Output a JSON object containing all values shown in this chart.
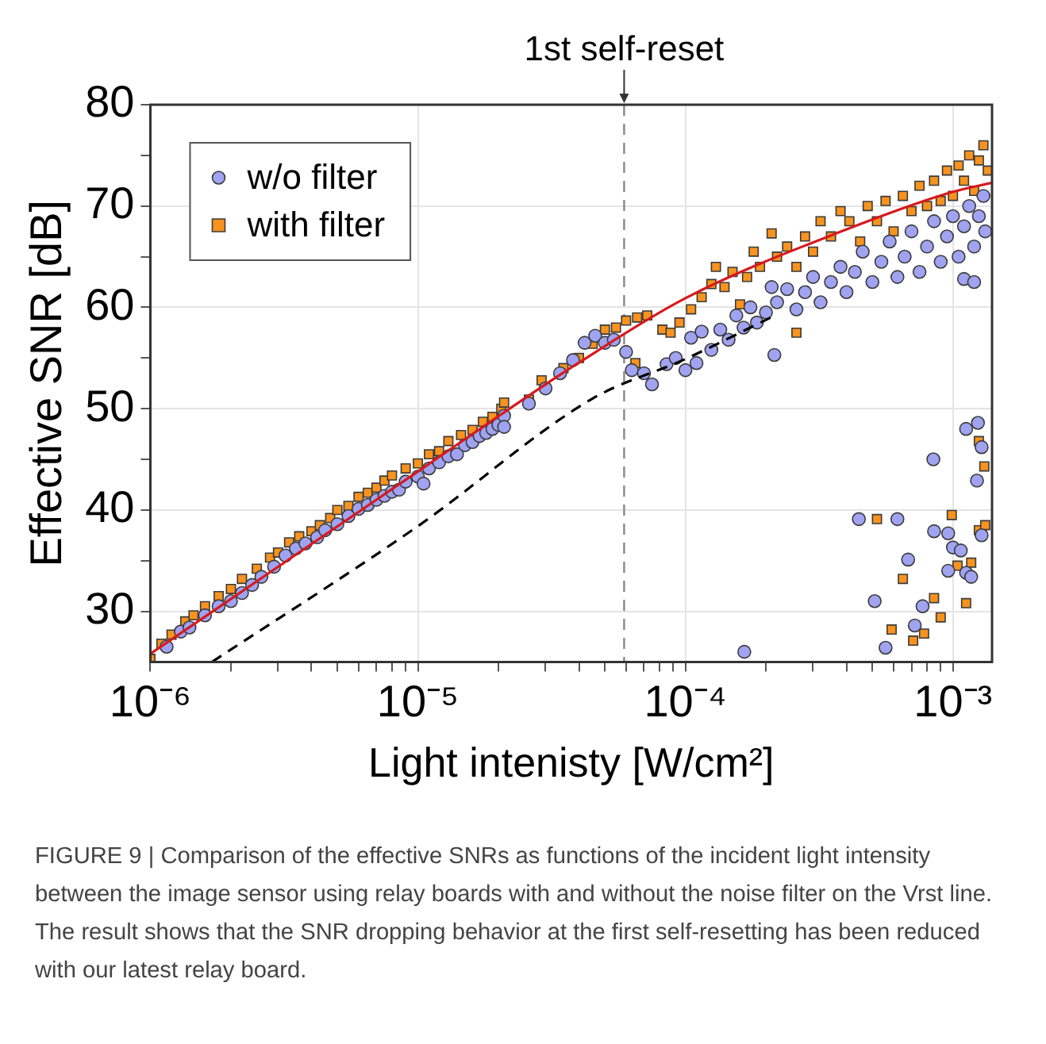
{
  "chart_data": {
    "type": "scatter",
    "xlabel": "Light intenisty [W/cm²]",
    "ylabel": "Effective SNR [dB]",
    "log": "x",
    "xlim": [
      1e-06,
      0.0014
    ],
    "xticks": [
      {
        "value": 1e-06,
        "label": "10⁻⁶"
      },
      {
        "value": 2e-06,
        "label": null
      },
      {
        "value": 3e-06,
        "label": null
      },
      {
        "value": 4e-06,
        "label": null
      },
      {
        "value": 5e-06,
        "label": null
      },
      {
        "value": 6e-06,
        "label": null
      },
      {
        "value": 7e-06,
        "label": null
      },
      {
        "value": 8e-06,
        "label": null
      },
      {
        "value": 9e-06,
        "label": null
      },
      {
        "value": 1e-05,
        "label": "10⁻⁵"
      },
      {
        "value": 2e-05,
        "label": null
      },
      {
        "value": 3e-05,
        "label": null
      },
      {
        "value": 4e-05,
        "label": null
      },
      {
        "value": 5e-05,
        "label": null
      },
      {
        "value": 6e-05,
        "label": null
      },
      {
        "value": 7e-05,
        "label": null
      },
      {
        "value": 8e-05,
        "label": null
      },
      {
        "value": 9e-05,
        "label": null
      },
      {
        "value": 0.0001,
        "label": "10⁻⁴"
      },
      {
        "value": 0.0002,
        "label": null
      },
      {
        "value": 0.0003,
        "label": null
      },
      {
        "value": 0.0004,
        "label": null
      },
      {
        "value": 0.0005,
        "label": null
      },
      {
        "value": 0.0006,
        "label": null
      },
      {
        "value": 0.0007,
        "label": null
      },
      {
        "value": 0.0008,
        "label": null
      },
      {
        "value": 0.0009,
        "label": null
      },
      {
        "value": 0.001,
        "label": "10⁻³"
      }
    ],
    "ylim": [
      25,
      80
    ],
    "yticks": [
      30,
      {
        "value": 35,
        "label": null
      },
      40,
      {
        "value": 45,
        "label": null
      },
      50,
      {
        "value": 55,
        "label": null
      },
      60,
      {
        "value": 65,
        "label": null
      },
      70,
      {
        "value": 75,
        "label": null
      },
      80
    ],
    "grid": true,
    "legend": "top left",
    "series": [
      {
        "name": "w/o filter",
        "marker": "circle",
        "color": "#9fa3f0",
        "x": [
          1.15e-06,
          1.3e-06,
          1.4e-06,
          1.6e-06,
          1.8e-06,
          2e-06,
          2.2e-06,
          2.4e-06,
          2.6e-06,
          2.9e-06,
          3.2e-06,
          3.5e-06,
          3.8e-06,
          4.2e-06,
          4.5e-06,
          5e-06,
          5.5e-06,
          6e-06,
          6.5e-06,
          7e-06,
          7.5e-06,
          8e-06,
          8.5e-06,
          9e-06,
          1e-05,
          1.05e-05,
          1.1e-05,
          1.2e-05,
          1.3e-05,
          1.4e-05,
          1.5e-05,
          1.6e-05,
          1.7e-05,
          1.8e-05,
          1.9e-05,
          2e-05,
          2.1e-05,
          2.1e-05,
          2.6e-05,
          3e-05,
          3.4e-05,
          3.8e-05,
          4.2e-05,
          4.6e-05,
          5e-05,
          5.4e-05,
          6e-05,
          6.3e-05,
          7e-05,
          7.5e-05,
          8.5e-05,
          9.2e-05,
          0.000105,
          0.000115,
          0.0001,
          0.00011,
          0.000125,
          0.000135,
          0.000145,
          0.000155,
          0.000165,
          0.000175,
          0.000185,
          0.0002,
          0.00022,
          0.00021,
          0.00024,
          0.00026,
          0.00028,
          0.0003,
          0.00032,
          0.00035,
          0.00038,
          0.0004,
          0.00043,
          0.00046,
          0.0005,
          0.00054,
          0.00058,
          0.00062,
          0.00066,
          0.0007,
          0.00075,
          0.0008,
          0.00085,
          0.0009,
          0.00095,
          0.001,
          0.00105,
          0.0011,
          0.00115,
          0.0012,
          0.00125,
          0.0013,
          0.00132,
          0.0011,
          0.0012,
          0.000215,
          0.000166,
          0.000445,
          0.00062,
          0.00051,
          0.00056,
          0.00068,
          0.00077,
          0.00072,
          0.000845,
          0.00085,
          0.00096,
          0.001,
          0.00107,
          0.00096,
          0.00112,
          0.00117,
          0.00112,
          0.00124,
          0.00128,
          0.00123,
          0.00128
        ],
        "values": [
          26.5,
          28.0,
          28.4,
          29.6,
          30.5,
          31.0,
          31.8,
          32.6,
          33.4,
          34.4,
          35.5,
          36.2,
          36.7,
          37.3,
          38.0,
          38.6,
          39.4,
          40.1,
          40.5,
          41.0,
          41.4,
          41.8,
          42.0,
          42.8,
          43.3,
          42.6,
          44.1,
          44.7,
          45.3,
          45.5,
          46.4,
          46.7,
          47.3,
          47.6,
          48.0,
          48.4,
          49.3,
          48.2,
          50.5,
          52.0,
          53.5,
          54.8,
          56.5,
          57.2,
          56.5,
          56.8,
          55.6,
          53.8,
          53.5,
          52.4,
          54.4,
          55.0,
          57.0,
          57.6,
          53.8,
          54.5,
          55.8,
          57.8,
          56.8,
          59.2,
          58.0,
          60.0,
          58.5,
          59.5,
          60.5,
          62.0,
          61.8,
          59.8,
          61.5,
          63.0,
          60.5,
          62.5,
          64.0,
          61.5,
          63.5,
          65.5,
          62.5,
          64.5,
          66.5,
          63.0,
          65.0,
          67.5,
          63.5,
          66.0,
          68.5,
          64.5,
          67.0,
          69.0,
          65.0,
          68.0,
          70.0,
          66.0,
          69.0,
          71.0,
          67.5,
          62.8,
          62.5,
          55.3,
          26.0,
          39.1,
          39.1,
          31.0,
          26.4,
          35.1,
          30.5,
          28.6,
          45.0,
          37.9,
          37.7,
          36.3,
          36.0,
          34.0,
          33.8,
          33.4,
          48.0,
          48.6,
          46.2,
          42.9,
          37.5
        ]
      },
      {
        "name": "with filter",
        "marker": "square",
        "color": "#f7931e",
        "x": [
          1e-06,
          1.1e-06,
          1.2e-06,
          1.35e-06,
          1.45e-06,
          1.6e-06,
          1.8e-06,
          2e-06,
          2.2e-06,
          2.5e-06,
          2.8e-06,
          3e-06,
          3.3e-06,
          3.6e-06,
          4e-06,
          4.3e-06,
          4.7e-06,
          5e-06,
          5.5e-06,
          6e-06,
          6.5e-06,
          7e-06,
          7.5e-06,
          8e-06,
          9e-06,
          1e-05,
          1.1e-05,
          1.2e-05,
          1.3e-05,
          1.45e-05,
          1.6e-05,
          1.75e-05,
          1.9e-05,
          2.05e-05,
          2.1e-05,
          2.6e-05,
          2.9e-05,
          3.5e-05,
          4e-05,
          4.5e-05,
          5e-05,
          5.5e-05,
          6e-05,
          6.6e-05,
          7.2e-05,
          6.5e-05,
          8.2e-05,
          8.8e-05,
          9.5e-05,
          0.000105,
          0.000115,
          0.000125,
          0.00013,
          0.00014,
          0.00015,
          0.00016,
          0.00017,
          0.00018,
          0.00019,
          0.00021,
          0.00022,
          0.00024,
          0.00026,
          0.00028,
          0.0003,
          0.00032,
          0.00035,
          0.00038,
          0.00041,
          0.00045,
          0.00048,
          0.00052,
          0.00056,
          0.0006,
          0.00065,
          0.0007,
          0.00075,
          0.0008,
          0.00085,
          0.0009,
          0.00095,
          0.001,
          0.00105,
          0.0011,
          0.00115,
          0.0012,
          0.00125,
          0.0013,
          0.00135,
          0.00026,
          0.00052,
          0.00065,
          0.00085,
          0.00099,
          0.00104,
          0.00117,
          0.00112,
          0.0009,
          0.00078,
          0.00059,
          0.00071,
          0.00125,
          0.00131,
          0.00125,
          0.00132
        ],
        "values": [
          25.3,
          26.8,
          27.7,
          29.0,
          29.6,
          30.5,
          31.5,
          32.2,
          33.2,
          34.2,
          35.3,
          35.8,
          36.8,
          37.4,
          37.9,
          38.5,
          39.2,
          40.0,
          40.4,
          41.3,
          41.7,
          42.2,
          42.9,
          43.4,
          44.1,
          44.6,
          45.5,
          45.8,
          46.8,
          47.4,
          47.9,
          48.7,
          49.2,
          50.0,
          50.6,
          50.9,
          52.8,
          54.0,
          55.0,
          56.4,
          57.8,
          58.0,
          58.7,
          59.0,
          59.2,
          54.5,
          57.8,
          57.5,
          58.5,
          59.8,
          61.0,
          62.3,
          64.0,
          62.0,
          63.5,
          60.3,
          63.0,
          65.5,
          64.0,
          67.3,
          65.0,
          66.0,
          64.0,
          67.0,
          65.5,
          68.5,
          67.0,
          69.5,
          68.5,
          66.5,
          70.0,
          68.5,
          70.5,
          67.5,
          71.0,
          69.5,
          72.0,
          70.0,
          72.5,
          70.5,
          73.5,
          71.0,
          74.0,
          72.5,
          75.0,
          71.5,
          74.5,
          76.0,
          73.5,
          57.5,
          39.1,
          33.2,
          31.3,
          39.5,
          34.5,
          34.8,
          30.8,
          29.4,
          27.8,
          28.2,
          27.1,
          46.8,
          44.3,
          38.0,
          38.5
        ]
      },
      {
        "type": "line",
        "marker": "none",
        "line_style": "solid",
        "color": "#d7191c",
        "x": [
          1e-06,
          1e-05,
          2.2e-05,
          3.87e-05,
          0.0001,
          0.00041,
          0.001,
          0.0014
        ],
        "values": [
          25.8,
          43.8,
          50.0,
          54.3,
          60.9,
          67.8,
          71.4,
          72.3
        ]
      },
      {
        "type": "line",
        "marker": "none",
        "line_style": "dashed",
        "color": "#000000",
        "x": [
          1.7e-06,
          1e-05,
          4.5e-05,
          0.0001,
          0.00022
        ],
        "values": [
          25.0,
          38.4,
          51.0,
          54.9,
          59.3
        ]
      }
    ],
    "ref_lines": [
      {
        "axis": "x",
        "value": 5.9e-05,
        "label": "1st self-reset",
        "color": "#888888",
        "line_style": "dashed"
      }
    ],
    "annotations": [
      "FIGURE 9 | Comparison of the effective SNRs as functions of the incident light intensity between the image sensor using relay boards with and without the noise filter on the Vrst line. The result shows that the SNR dropping behavior at the first self-resetting has been reduced with our latest relay board."
    ]
  }
}
